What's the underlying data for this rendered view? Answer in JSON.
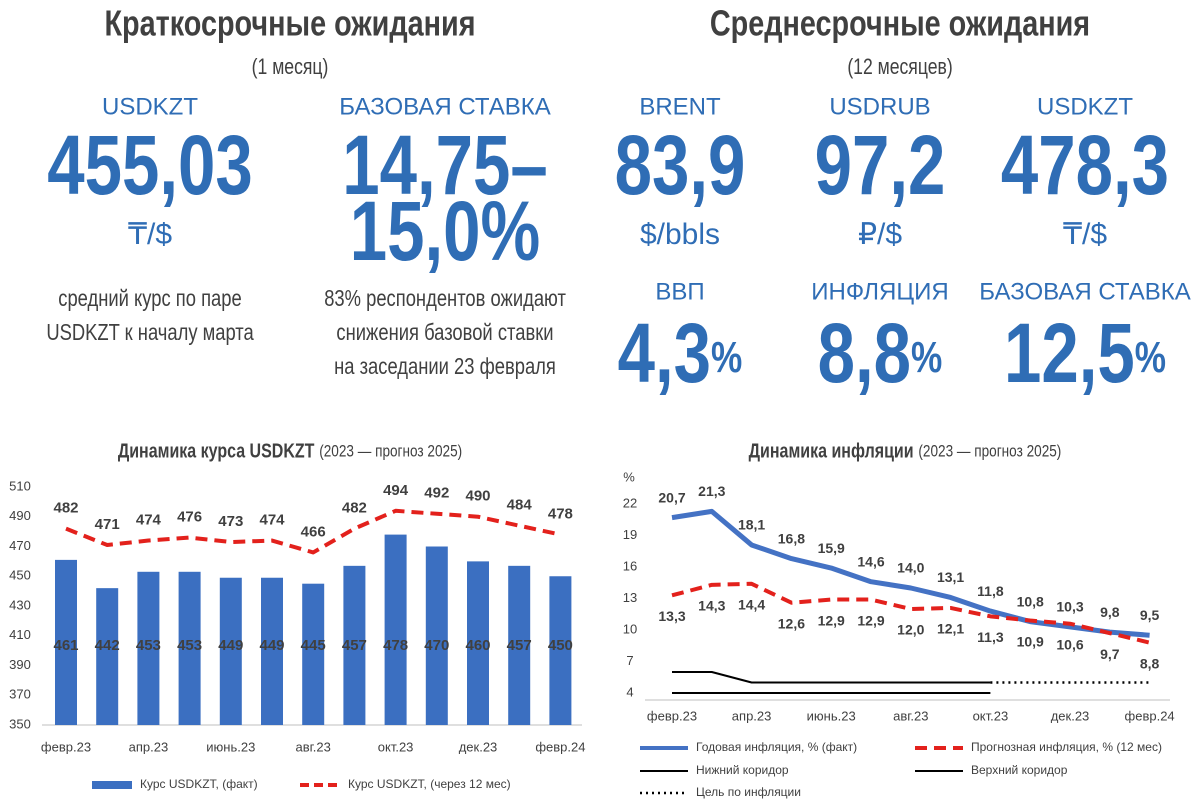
{
  "short_term": {
    "title": "Краткосрочные ожидания",
    "subtitle": "(1 месяц)",
    "items": [
      {
        "label": "USDKZT",
        "value": "455,03",
        "unit": "₸/$",
        "note": [
          "средний курс по паре",
          "USDKZT к началу марта"
        ]
      },
      {
        "label": "БАЗОВАЯ СТАВКА",
        "value_lines": [
          "14,75–",
          "15,0%"
        ],
        "note": [
          "83% респондентов ожидают",
          "снижения базовой ставки",
          "на заседании 23 февраля"
        ]
      }
    ]
  },
  "medium_term": {
    "title": "Среднесрочные ожидания",
    "subtitle": "(12 месяцев)",
    "items": [
      {
        "label": "BRENT",
        "value": "83,9",
        "unit": "$/bbls"
      },
      {
        "label": "USDRUB",
        "value": "97,2",
        "unit": "₽/$"
      },
      {
        "label": "USDKZT",
        "value": "478,3",
        "unit": "₸/$"
      },
      {
        "label": "ВВП",
        "value": "4,3",
        "unit": "%"
      },
      {
        "label": "ИНФЛЯЦИЯ",
        "value": "8,8",
        "unit": "%"
      },
      {
        "label": "БАЗОВАЯ СТАВКА",
        "value": "12,5",
        "unit": "%"
      }
    ]
  },
  "chart_data": [
    {
      "type": "bar",
      "title": "Динамика курса USDKZT",
      "subtitle": "(2023 — прогноз 2025)",
      "categories": [
        "февр.23",
        null,
        "апр.23",
        null,
        "июнь.23",
        null,
        "авг.23",
        null,
        "окт.23",
        null,
        "дек.23",
        null,
        "февр.24"
      ],
      "series": [
        {
          "name": "Курс USDKZT, (факт)",
          "type": "bar",
          "color": "#3b6fc1",
          "values": [
            461,
            442,
            453,
            453,
            449,
            449,
            445,
            457,
            478,
            470,
            460,
            457,
            450
          ]
        },
        {
          "name": "Курс USDKZT, (через 12 мес)",
          "type": "line",
          "style": "dashed",
          "color": "#e3211c",
          "values": [
            482,
            471,
            474,
            476,
            473,
            474,
            466,
            482,
            494,
            492,
            490,
            484,
            478
          ]
        }
      ],
      "ylim": [
        350,
        510
      ],
      "yticks": [
        350,
        370,
        390,
        410,
        430,
        450,
        470,
        490,
        510
      ],
      "grid": false
    },
    {
      "type": "line",
      "title": "Динамика инфляции",
      "subtitle": "(2023 — прогноз 2025)",
      "y_label": "%",
      "categories": [
        "февр.23",
        null,
        "апр.23",
        null,
        "июнь.23",
        null,
        "авг.23",
        null,
        "окт.23",
        null,
        "дек.23",
        null,
        "февр.24"
      ],
      "series": [
        {
          "name": "Годовая инфляция, % (факт)",
          "style": "solid",
          "color": "#4472c4",
          "values": [
            20.7,
            21.3,
            18.1,
            16.8,
            15.9,
            14.6,
            14.0,
            13.1,
            11.8,
            10.8,
            10.3,
            9.8,
            9.5
          ],
          "value_labels": [
            "20,7",
            "21,3",
            "18,1",
            "16,8",
            "15,9",
            "14,6",
            "14,0",
            "13,1",
            "11,8",
            "10,8",
            "10,3",
            "9,8",
            "9,5"
          ]
        },
        {
          "name": "Прогнозная инфляция, % (12 мес)",
          "style": "dashed",
          "color": "#e3211c",
          "values": [
            13.3,
            14.3,
            14.4,
            12.6,
            12.9,
            12.9,
            12.0,
            12.1,
            11.3,
            10.9,
            10.6,
            9.7,
            8.8
          ],
          "value_labels": [
            "13,3",
            "14,3",
            "14,4",
            "12,6",
            "12,9",
            "12,9",
            "12,0",
            "12,1",
            "11,3",
            "10,9",
            "10,6",
            "9,7",
            "8,8"
          ]
        },
        {
          "name": "Нижний коридор",
          "style": "solid",
          "color": "#000000",
          "values": [
            4,
            4,
            4,
            4,
            4,
            4,
            4,
            4,
            4,
            null,
            null,
            null,
            null
          ]
        },
        {
          "name": "Верхний коридор",
          "style": "solid",
          "color": "#000000",
          "values": [
            6,
            6,
            5,
            5,
            5,
            5,
            5,
            5,
            5,
            null,
            null,
            null,
            null
          ]
        },
        {
          "name": "Цель по инфляции",
          "style": "dotted",
          "color": "#000000",
          "values": [
            null,
            null,
            null,
            null,
            null,
            null,
            null,
            null,
            5,
            5,
            5,
            5,
            5
          ]
        }
      ],
      "ylim": [
        4,
        22
      ],
      "yticks": [
        4,
        7,
        10,
        13,
        16,
        19,
        22
      ],
      "grid": false
    }
  ]
}
